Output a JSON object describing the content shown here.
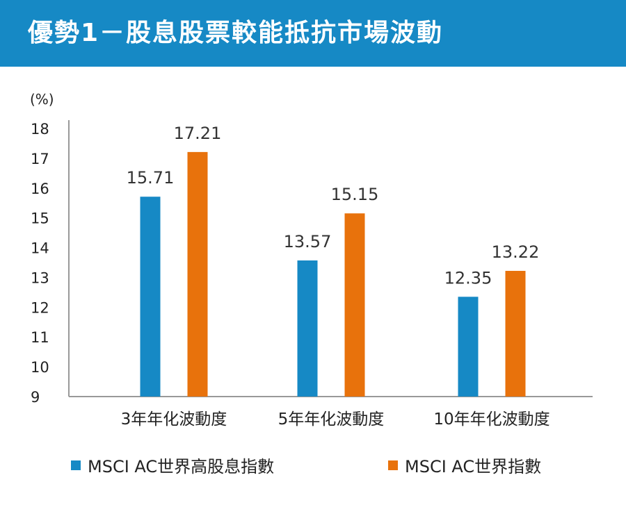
{
  "header": {
    "title": "優勢1－股息股票較能抵抗市場波動"
  },
  "chart_data": {
    "type": "bar",
    "unit_label": "(%)",
    "categories": [
      "3年年化波動度",
      "5年年化波動度",
      "10年年化波動度"
    ],
    "ylim": [
      9,
      18
    ],
    "yticks": [
      9,
      10,
      11,
      12,
      13,
      14,
      15,
      16,
      17,
      18
    ],
    "series": [
      {
        "name": "MSCI AC世界高股息指數",
        "color": "#1689c5",
        "values": [
          15.71,
          13.57,
          12.35
        ]
      },
      {
        "name": "MSCI AC世界指數",
        "color": "#e8720c",
        "values": [
          17.21,
          15.15,
          13.22
        ]
      }
    ],
    "data_labels": [
      [
        "15.71",
        "13.57",
        "12.35"
      ],
      [
        "17.21",
        "15.15",
        "13.22"
      ]
    ],
    "legend": "bottom",
    "grid": false
  }
}
